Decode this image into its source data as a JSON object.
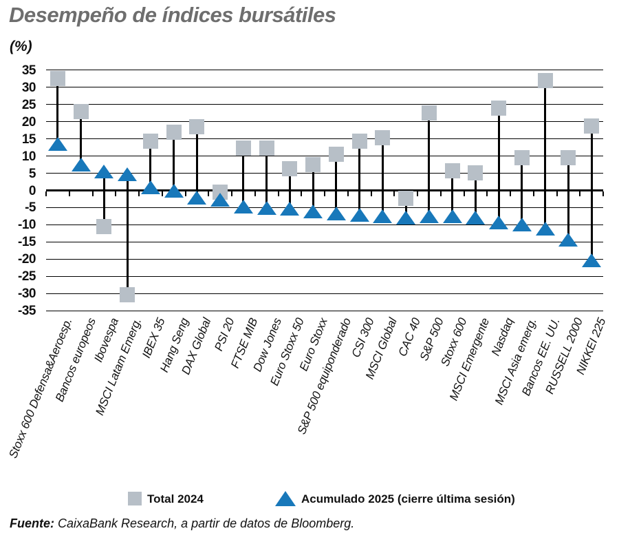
{
  "header": {
    "title": "Desempeño de índices bursátiles",
    "unit_label": "(%)"
  },
  "chart_data": {
    "type": "scatter",
    "variant": "stem-with-two-markers",
    "title": "Desempeño de índices bursátiles",
    "ylabel": "(%)",
    "ylim": [
      -35,
      35
    ],
    "ytick_step": 5,
    "grid": true,
    "legend_position": "bottom",
    "categories": [
      "Stoxx 600 Defensa&Aeroesp.",
      "Bancos europeos",
      "Ibovespa",
      "MSCI Latam Emerg.",
      "IBEX 35",
      "Hang Seng",
      "DAX Global",
      "PSI 20",
      "FTSE MIB",
      "Dow Jones",
      "Euro Stoxx 50",
      "Euro Stoxx",
      "S&P 500 equiponderado",
      "CSI 300",
      "MSCI Global",
      "CAC 40",
      "S&P 500",
      "Stoxx 600",
      "MSCI Emergente",
      "Nasdaq",
      "MSCI Asia emerg.",
      "Bancos EE. UU.",
      "RUSSELL 2000",
      "NIKKEI 225"
    ],
    "series": [
      {
        "name": "Total 2024",
        "marker": "square",
        "color": "#b7bfc7",
        "values": [
          32.5,
          23,
          -10.5,
          -30.3,
          14.3,
          17,
          18.5,
          -0.5,
          12.4,
          12.4,
          6.3,
          7.6,
          10.5,
          14.4,
          15.4,
          -2.4,
          22.5,
          5.8,
          5.2,
          24,
          9.5,
          32,
          9.5,
          18.8
        ]
      },
      {
        "name": "Acumulado 2025 (cierre última sesión)",
        "marker": "triangle",
        "color": "#1878ba",
        "values": [
          13.5,
          7.5,
          5.5,
          4.7,
          1,
          0,
          -2.2,
          -2.7,
          -4.7,
          -5.1,
          -5.4,
          -6.1,
          -6.8,
          -7.2,
          -7.6,
          -8,
          -7.5,
          -7.6,
          -7.9,
          -9.4,
          -10,
          -11.2,
          -14.3,
          -20.4
        ]
      }
    ]
  },
  "legend": {
    "total_label": "Total 2024",
    "acumulado_label": "Acumulado 2025 (cierre última sesión)"
  },
  "footer": {
    "source_label": "Fuente:",
    "source_text": " CaixaBank Research, a partir de datos de Bloomberg."
  },
  "colors": {
    "total_marker": "#b7bfc7",
    "acumulado_marker": "#1878ba",
    "title_gray": "#6e6e6e",
    "axis_black": "#000000"
  }
}
